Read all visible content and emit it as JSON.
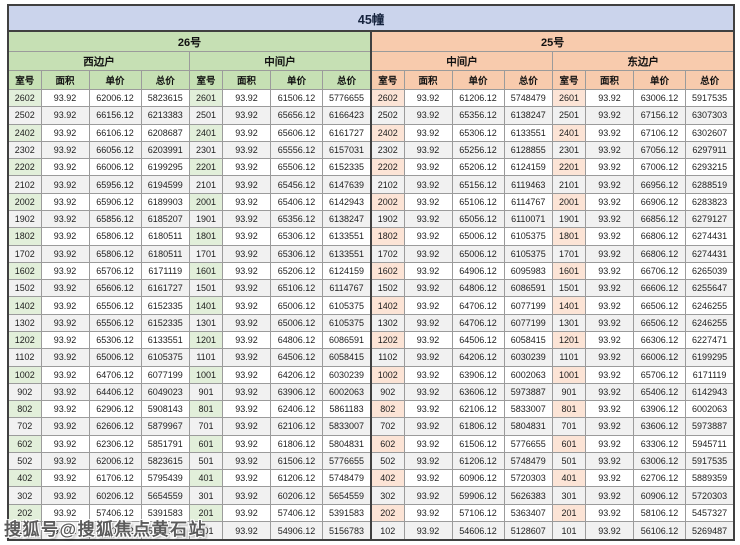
{
  "title": "45幢",
  "watermark": "搜狐号@搜狐焦点黄石站",
  "columns": [
    "室号",
    "面积",
    "单价",
    "总价"
  ],
  "colors": {
    "title_bg": "#cbd4ec",
    "green_header": "#c6e0b4",
    "green_room": "#e2efda",
    "peach_header": "#f8cbad",
    "peach_room": "#fce4d6",
    "stripe": "#f1f1f1",
    "border": "#9b9b9b",
    "border_dark": "#404040"
  },
  "chart_data": {
    "type": "table",
    "note": "总价 = round(单价 × 面积); building price list"
  },
  "sections": [
    {
      "name": "26号",
      "theme": "green",
      "units": [
        {
          "name": "西边户",
          "rows": [
            [
              "2602",
              "93.92",
              "62006.12",
              "5823615"
            ],
            [
              "2502",
              "93.92",
              "66156.12",
              "6213383"
            ],
            [
              "2402",
              "93.92",
              "66106.12",
              "6208687"
            ],
            [
              "2302",
              "93.92",
              "66056.12",
              "6203991"
            ],
            [
              "2202",
              "93.92",
              "66006.12",
              "6199295"
            ],
            [
              "2102",
              "93.92",
              "65956.12",
              "6194599"
            ],
            [
              "2002",
              "93.92",
              "65906.12",
              "6189903"
            ],
            [
              "1902",
              "93.92",
              "65856.12",
              "6185207"
            ],
            [
              "1802",
              "93.92",
              "65806.12",
              "6180511"
            ],
            [
              "1702",
              "93.92",
              "65806.12",
              "6180511"
            ],
            [
              "1602",
              "93.92",
              "65706.12",
              "6171119"
            ],
            [
              "1502",
              "93.92",
              "65606.12",
              "6161727"
            ],
            [
              "1402",
              "93.92",
              "65506.12",
              "6152335"
            ],
            [
              "1302",
              "93.92",
              "65506.12",
              "6152335"
            ],
            [
              "1202",
              "93.92",
              "65306.12",
              "6133551"
            ],
            [
              "1102",
              "93.92",
              "65006.12",
              "6105375"
            ],
            [
              "1002",
              "93.92",
              "64706.12",
              "6077199"
            ],
            [
              "902",
              "93.92",
              "64406.12",
              "6049023"
            ],
            [
              "802",
              "93.92",
              "62906.12",
              "5908143"
            ],
            [
              "702",
              "93.92",
              "62606.12",
              "5879967"
            ],
            [
              "602",
              "93.92",
              "62306.12",
              "5851791"
            ],
            [
              "502",
              "93.92",
              "62006.12",
              "5823615"
            ],
            [
              "402",
              "93.92",
              "61706.12",
              "5795439"
            ],
            [
              "302",
              "93.92",
              "60206.12",
              "5654559"
            ],
            [
              "202",
              "93.92",
              "57406.12",
              "5391583"
            ],
            [
              "102",
              "93.92",
              "55406.12",
              "5203743"
            ]
          ]
        },
        {
          "name": "中间户",
          "rows": [
            [
              "2601",
              "93.92",
              "61506.12",
              "5776655"
            ],
            [
              "2501",
              "93.92",
              "65656.12",
              "6166423"
            ],
            [
              "2401",
              "93.92",
              "65606.12",
              "6161727"
            ],
            [
              "2301",
              "93.92",
              "65556.12",
              "6157031"
            ],
            [
              "2201",
              "93.92",
              "65506.12",
              "6152335"
            ],
            [
              "2101",
              "93.92",
              "65456.12",
              "6147639"
            ],
            [
              "2001",
              "93.92",
              "65406.12",
              "6142943"
            ],
            [
              "1901",
              "93.92",
              "65356.12",
              "6138247"
            ],
            [
              "1801",
              "93.92",
              "65306.12",
              "6133551"
            ],
            [
              "1701",
              "93.92",
              "65306.12",
              "6133551"
            ],
            [
              "1601",
              "93.92",
              "65206.12",
              "6124159"
            ],
            [
              "1501",
              "93.92",
              "65106.12",
              "6114767"
            ],
            [
              "1401",
              "93.92",
              "65006.12",
              "6105375"
            ],
            [
              "1301",
              "93.92",
              "65006.12",
              "6105375"
            ],
            [
              "1201",
              "93.92",
              "64806.12",
              "6086591"
            ],
            [
              "1101",
              "93.92",
              "64506.12",
              "6058415"
            ],
            [
              "1001",
              "93.92",
              "64206.12",
              "6030239"
            ],
            [
              "901",
              "93.92",
              "63906.12",
              "6002063"
            ],
            [
              "801",
              "93.92",
              "62406.12",
              "5861183"
            ],
            [
              "701",
              "93.92",
              "62106.12",
              "5833007"
            ],
            [
              "601",
              "93.92",
              "61806.12",
              "5804831"
            ],
            [
              "501",
              "93.92",
              "61506.12",
              "5776655"
            ],
            [
              "401",
              "93.92",
              "61206.12",
              "5748479"
            ],
            [
              "301",
              "93.92",
              "60206.12",
              "5654559"
            ],
            [
              "201",
              "93.92",
              "57406.12",
              "5391583"
            ],
            [
              "101",
              "93.92",
              "54906.12",
              "5156783"
            ]
          ]
        }
      ]
    },
    {
      "name": "25号",
      "theme": "peach",
      "units": [
        {
          "name": "中间户",
          "rows": [
            [
              "2602",
              "93.92",
              "61206.12",
              "5748479"
            ],
            [
              "2502",
              "93.92",
              "65356.12",
              "6138247"
            ],
            [
              "2402",
              "93.92",
              "65306.12",
              "6133551"
            ],
            [
              "2302",
              "93.92",
              "65256.12",
              "6128855"
            ],
            [
              "2202",
              "93.92",
              "65206.12",
              "6124159"
            ],
            [
              "2102",
              "93.92",
              "65156.12",
              "6119463"
            ],
            [
              "2002",
              "93.92",
              "65106.12",
              "6114767"
            ],
            [
              "1902",
              "93.92",
              "65056.12",
              "6110071"
            ],
            [
              "1802",
              "93.92",
              "65006.12",
              "6105375"
            ],
            [
              "1702",
              "93.92",
              "65006.12",
              "6105375"
            ],
            [
              "1602",
              "93.92",
              "64906.12",
              "6095983"
            ],
            [
              "1502",
              "93.92",
              "64806.12",
              "6086591"
            ],
            [
              "1402",
              "93.92",
              "64706.12",
              "6077199"
            ],
            [
              "1302",
              "93.92",
              "64706.12",
              "6077199"
            ],
            [
              "1202",
              "93.92",
              "64506.12",
              "6058415"
            ],
            [
              "1102",
              "93.92",
              "64206.12",
              "6030239"
            ],
            [
              "1002",
              "93.92",
              "63906.12",
              "6002063"
            ],
            [
              "902",
              "93.92",
              "63606.12",
              "5973887"
            ],
            [
              "802",
              "93.92",
              "62106.12",
              "5833007"
            ],
            [
              "702",
              "93.92",
              "61806.12",
              "5804831"
            ],
            [
              "602",
              "93.92",
              "61506.12",
              "5776655"
            ],
            [
              "502",
              "93.92",
              "61206.12",
              "5748479"
            ],
            [
              "402",
              "93.92",
              "60906.12",
              "5720303"
            ],
            [
              "302",
              "93.92",
              "59906.12",
              "5626383"
            ],
            [
              "202",
              "93.92",
              "57106.12",
              "5363407"
            ],
            [
              "102",
              "93.92",
              "54606.12",
              "5128607"
            ]
          ]
        },
        {
          "name": "东边户",
          "rows": [
            [
              "2601",
              "93.92",
              "63006.12",
              "5917535"
            ],
            [
              "2501",
              "93.92",
              "67156.12",
              "6307303"
            ],
            [
              "2401",
              "93.92",
              "67106.12",
              "6302607"
            ],
            [
              "2301",
              "93.92",
              "67056.12",
              "6297911"
            ],
            [
              "2201",
              "93.92",
              "67006.12",
              "6293215"
            ],
            [
              "2101",
              "93.92",
              "66956.12",
              "6288519"
            ],
            [
              "2001",
              "93.92",
              "66906.12",
              "6283823"
            ],
            [
              "1901",
              "93.92",
              "66856.12",
              "6279127"
            ],
            [
              "1801",
              "93.92",
              "66806.12",
              "6274431"
            ],
            [
              "1701",
              "93.92",
              "66806.12",
              "6274431"
            ],
            [
              "1601",
              "93.92",
              "66706.12",
              "6265039"
            ],
            [
              "1501",
              "93.92",
              "66606.12",
              "6255647"
            ],
            [
              "1401",
              "93.92",
              "66506.12",
              "6246255"
            ],
            [
              "1301",
              "93.92",
              "66506.12",
              "6246255"
            ],
            [
              "1201",
              "93.92",
              "66306.12",
              "6227471"
            ],
            [
              "1101",
              "93.92",
              "66006.12",
              "6199295"
            ],
            [
              "1001",
              "93.92",
              "65706.12",
              "6171119"
            ],
            [
              "901",
              "93.92",
              "65406.12",
              "6142943"
            ],
            [
              "801",
              "93.92",
              "63906.12",
              "6002063"
            ],
            [
              "701",
              "93.92",
              "63606.12",
              "5973887"
            ],
            [
              "601",
              "93.92",
              "63306.12",
              "5945711"
            ],
            [
              "501",
              "93.92",
              "63006.12",
              "5917535"
            ],
            [
              "401",
              "93.92",
              "62706.12",
              "5889359"
            ],
            [
              "301",
              "93.92",
              "60906.12",
              "5720303"
            ],
            [
              "201",
              "93.92",
              "58106.12",
              "5457327"
            ],
            [
              "101",
              "93.92",
              "56106.12",
              "5269487"
            ]
          ]
        }
      ]
    }
  ]
}
